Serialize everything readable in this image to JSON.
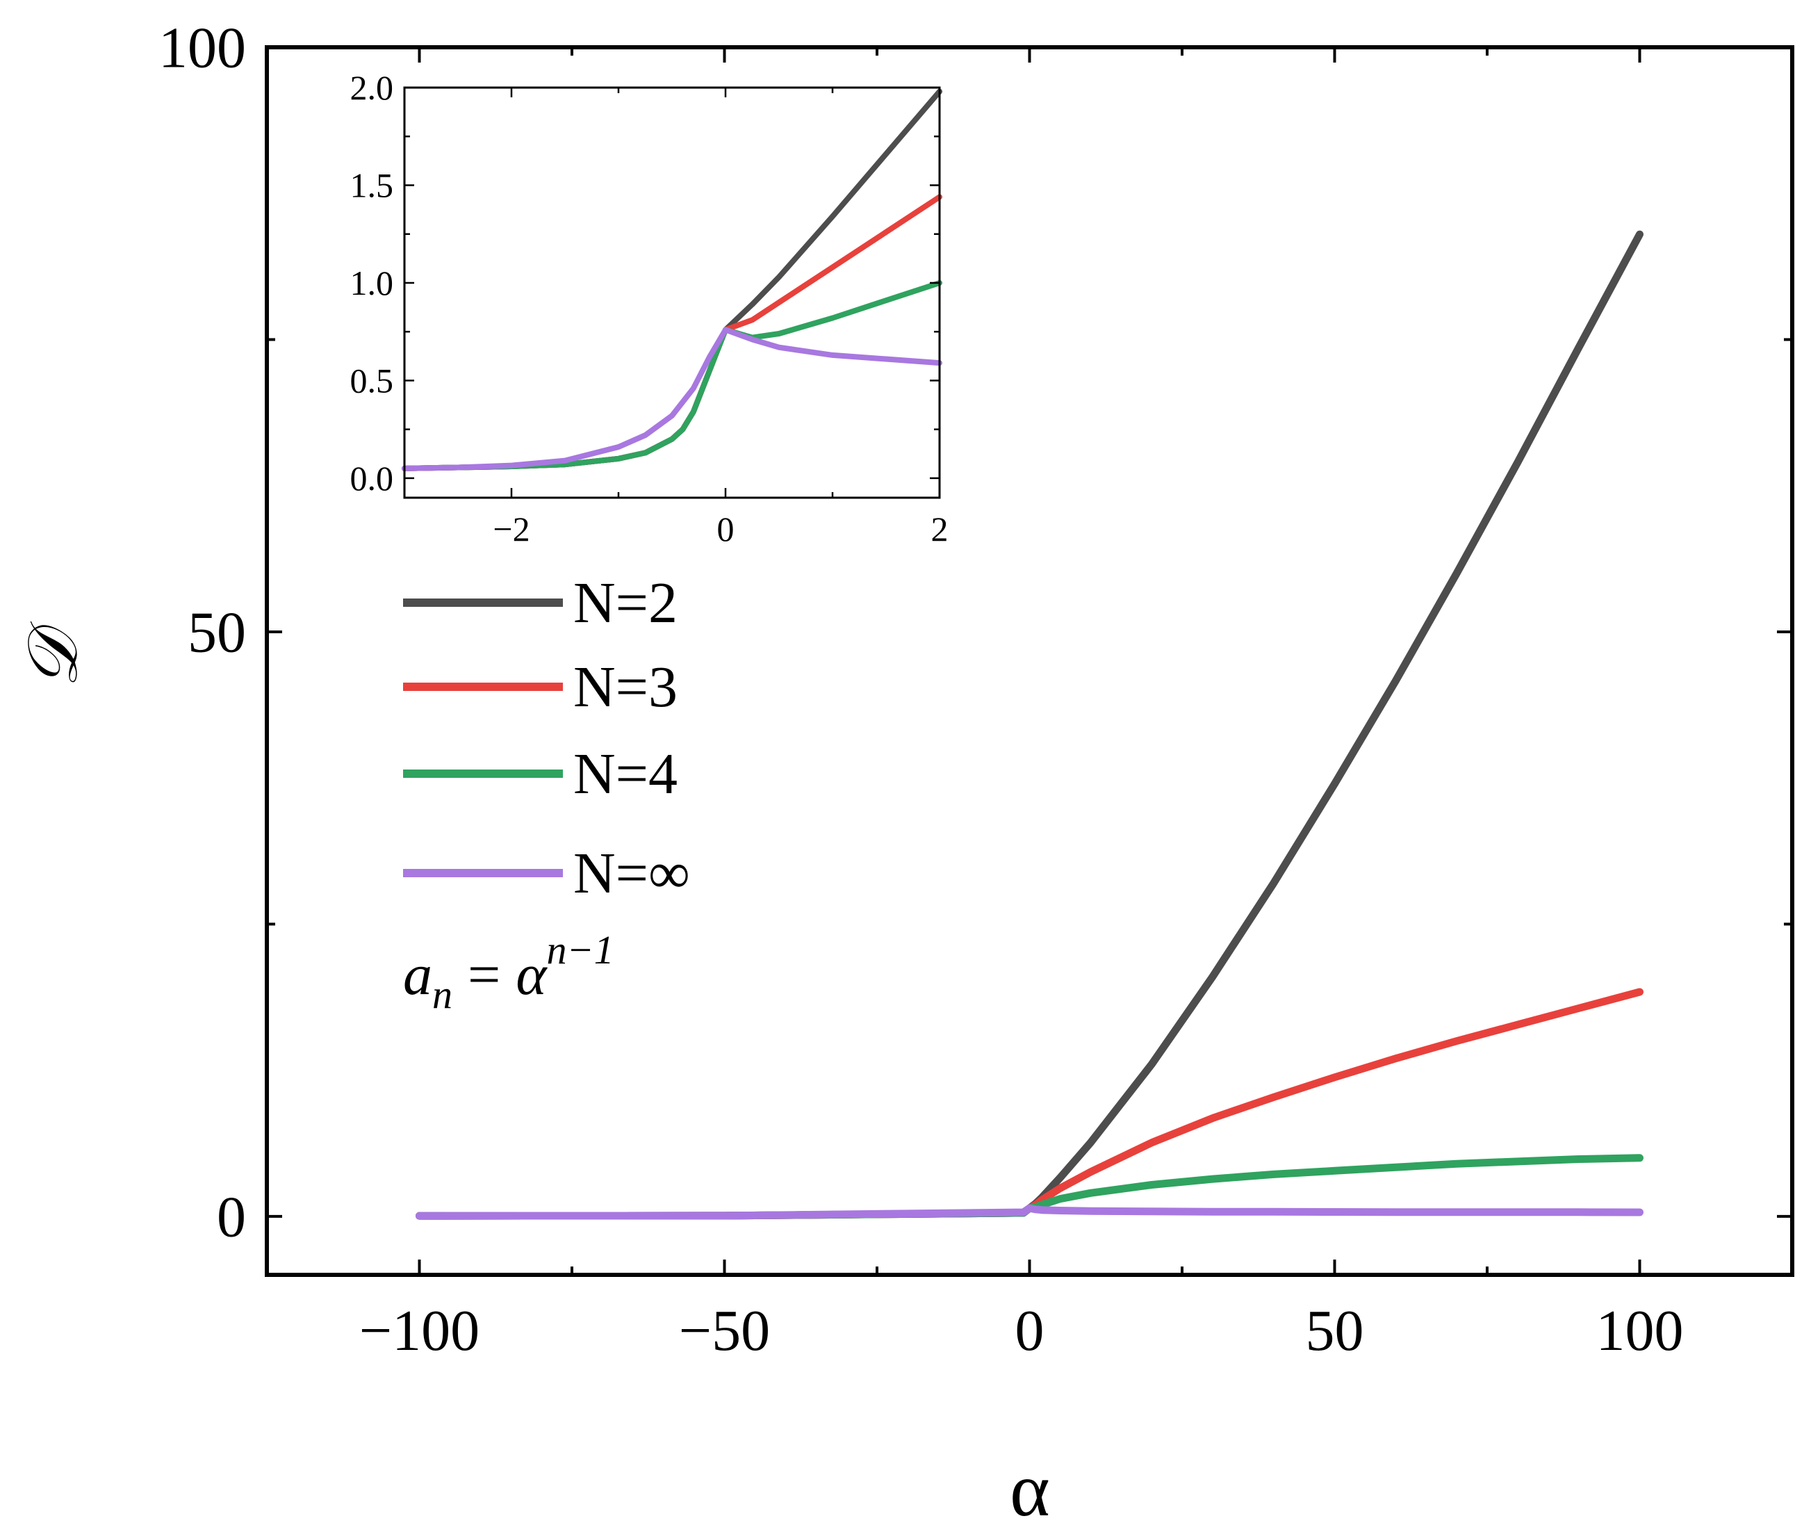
{
  "chart_data": [
    {
      "id": "main",
      "type": "line",
      "title": "",
      "xlabel": "α",
      "ylabel": "𝒟",
      "xlim": [
        -125,
        125
      ],
      "ylim": [
        -5,
        100
      ],
      "xticks": [
        -100,
        -50,
        0,
        50,
        100
      ],
      "xtick_labels": [
        "−100",
        "−50",
        "0",
        "50",
        "100"
      ],
      "yticks": [
        0,
        50,
        100
      ],
      "ytick_labels": [
        "0",
        "50",
        "100"
      ],
      "annotation": {
        "base": "a",
        "sub": "n",
        "eq": "=",
        "rhs": "α",
        "sup": "n−1"
      },
      "legend_position": "left-middle",
      "series": [
        {
          "name": "N=2",
          "color": "#4d4d4d",
          "x": [
            -100,
            -50,
            -1,
            0,
            1,
            2,
            5,
            10,
            20,
            30,
            40,
            50,
            60,
            70,
            80,
            90,
            100
          ],
          "y": [
            0.05,
            0.06,
            0.3,
            0.7,
            1.1,
            1.6,
            3.3,
            6.3,
            13.0,
            20.5,
            28.5,
            37.0,
            45.8,
            55.0,
            64.5,
            74.3,
            84.0
          ]
        },
        {
          "name": "N=3",
          "color": "#e8413c",
          "x": [
            -100,
            -50,
            -1,
            0,
            1,
            2,
            5,
            10,
            20,
            30,
            40,
            50,
            60,
            70,
            80,
            90,
            100
          ],
          "y": [
            0.05,
            0.06,
            0.3,
            0.7,
            1.0,
            1.4,
            2.4,
            3.8,
            6.3,
            8.4,
            10.2,
            11.9,
            13.5,
            15.0,
            16.4,
            17.8,
            19.2
          ]
        },
        {
          "name": "N=4",
          "color": "#2fa35f",
          "x": [
            -100,
            -50,
            -1,
            0,
            1,
            2,
            5,
            10,
            20,
            30,
            40,
            50,
            60,
            70,
            80,
            90,
            100
          ],
          "y": [
            0.05,
            0.06,
            0.3,
            0.7,
            0.8,
            1.0,
            1.5,
            2.0,
            2.7,
            3.2,
            3.6,
            3.9,
            4.2,
            4.5,
            4.7,
            4.9,
            5.0
          ]
        },
        {
          "name": "N=∞",
          "color": "#a878e0",
          "x": [
            -100,
            -50,
            -1,
            0,
            1,
            2,
            5,
            10,
            20,
            30,
            40,
            50,
            60,
            70,
            80,
            90,
            100
          ],
          "y": [
            0.05,
            0.06,
            0.35,
            0.7,
            0.6,
            0.55,
            0.5,
            0.45,
            0.42,
            0.4,
            0.39,
            0.38,
            0.37,
            0.37,
            0.36,
            0.36,
            0.35
          ]
        }
      ]
    },
    {
      "id": "inset",
      "type": "line",
      "title": "",
      "xlabel": "",
      "ylabel": "",
      "xlim": [
        -3,
        2
      ],
      "ylim": [
        -0.1,
        2.0
      ],
      "xticks": [
        -2,
        0,
        2
      ],
      "xtick_labels": [
        "−2",
        "0",
        "2"
      ],
      "yticks": [
        0.0,
        0.5,
        1.0,
        1.5,
        2.0
      ],
      "ytick_labels": [
        "0.0",
        "0.5",
        "1.0",
        "1.5",
        "2.0"
      ],
      "series": [
        {
          "name": "N=2",
          "color": "#4d4d4d",
          "x": [
            -3,
            -2.5,
            -2,
            -1.5,
            -1,
            -0.75,
            -0.5,
            -0.4,
            -0.3,
            -0.2,
            -0.1,
            0,
            0.25,
            0.5,
            1,
            1.5,
            2
          ],
          "y": [
            0.05,
            0.055,
            0.06,
            0.07,
            0.1,
            0.13,
            0.2,
            0.25,
            0.34,
            0.48,
            0.62,
            0.76,
            0.89,
            1.03,
            1.34,
            1.66,
            1.98
          ]
        },
        {
          "name": "N=3",
          "color": "#e8413c",
          "x": [
            -3,
            -2.5,
            -2,
            -1.5,
            -1,
            -0.75,
            -0.5,
            -0.4,
            -0.3,
            -0.2,
            -0.1,
            0,
            0.25,
            0.5,
            1,
            1.5,
            2
          ],
          "y": [
            0.05,
            0.055,
            0.06,
            0.07,
            0.1,
            0.13,
            0.2,
            0.25,
            0.34,
            0.48,
            0.62,
            0.76,
            0.81,
            0.9,
            1.08,
            1.26,
            1.44
          ]
        },
        {
          "name": "N=4",
          "color": "#2fa35f",
          "x": [
            -3,
            -2.5,
            -2,
            -1.5,
            -1,
            -0.75,
            -0.5,
            -0.4,
            -0.3,
            -0.2,
            -0.1,
            0,
            0.25,
            0.5,
            1,
            1.5,
            2
          ],
          "y": [
            0.05,
            0.055,
            0.06,
            0.07,
            0.1,
            0.13,
            0.2,
            0.25,
            0.34,
            0.48,
            0.62,
            0.76,
            0.72,
            0.74,
            0.82,
            0.91,
            1.0
          ]
        },
        {
          "name": "N=∞",
          "color": "#a878e0",
          "x": [
            -3,
            -2.5,
            -2,
            -1.5,
            -1,
            -0.75,
            -0.5,
            -0.3,
            -0.15,
            0,
            0.25,
            0.5,
            1,
            1.5,
            2
          ],
          "y": [
            0.05,
            0.055,
            0.065,
            0.09,
            0.16,
            0.22,
            0.32,
            0.46,
            0.62,
            0.76,
            0.71,
            0.67,
            0.63,
            0.61,
            0.59
          ]
        }
      ]
    }
  ]
}
